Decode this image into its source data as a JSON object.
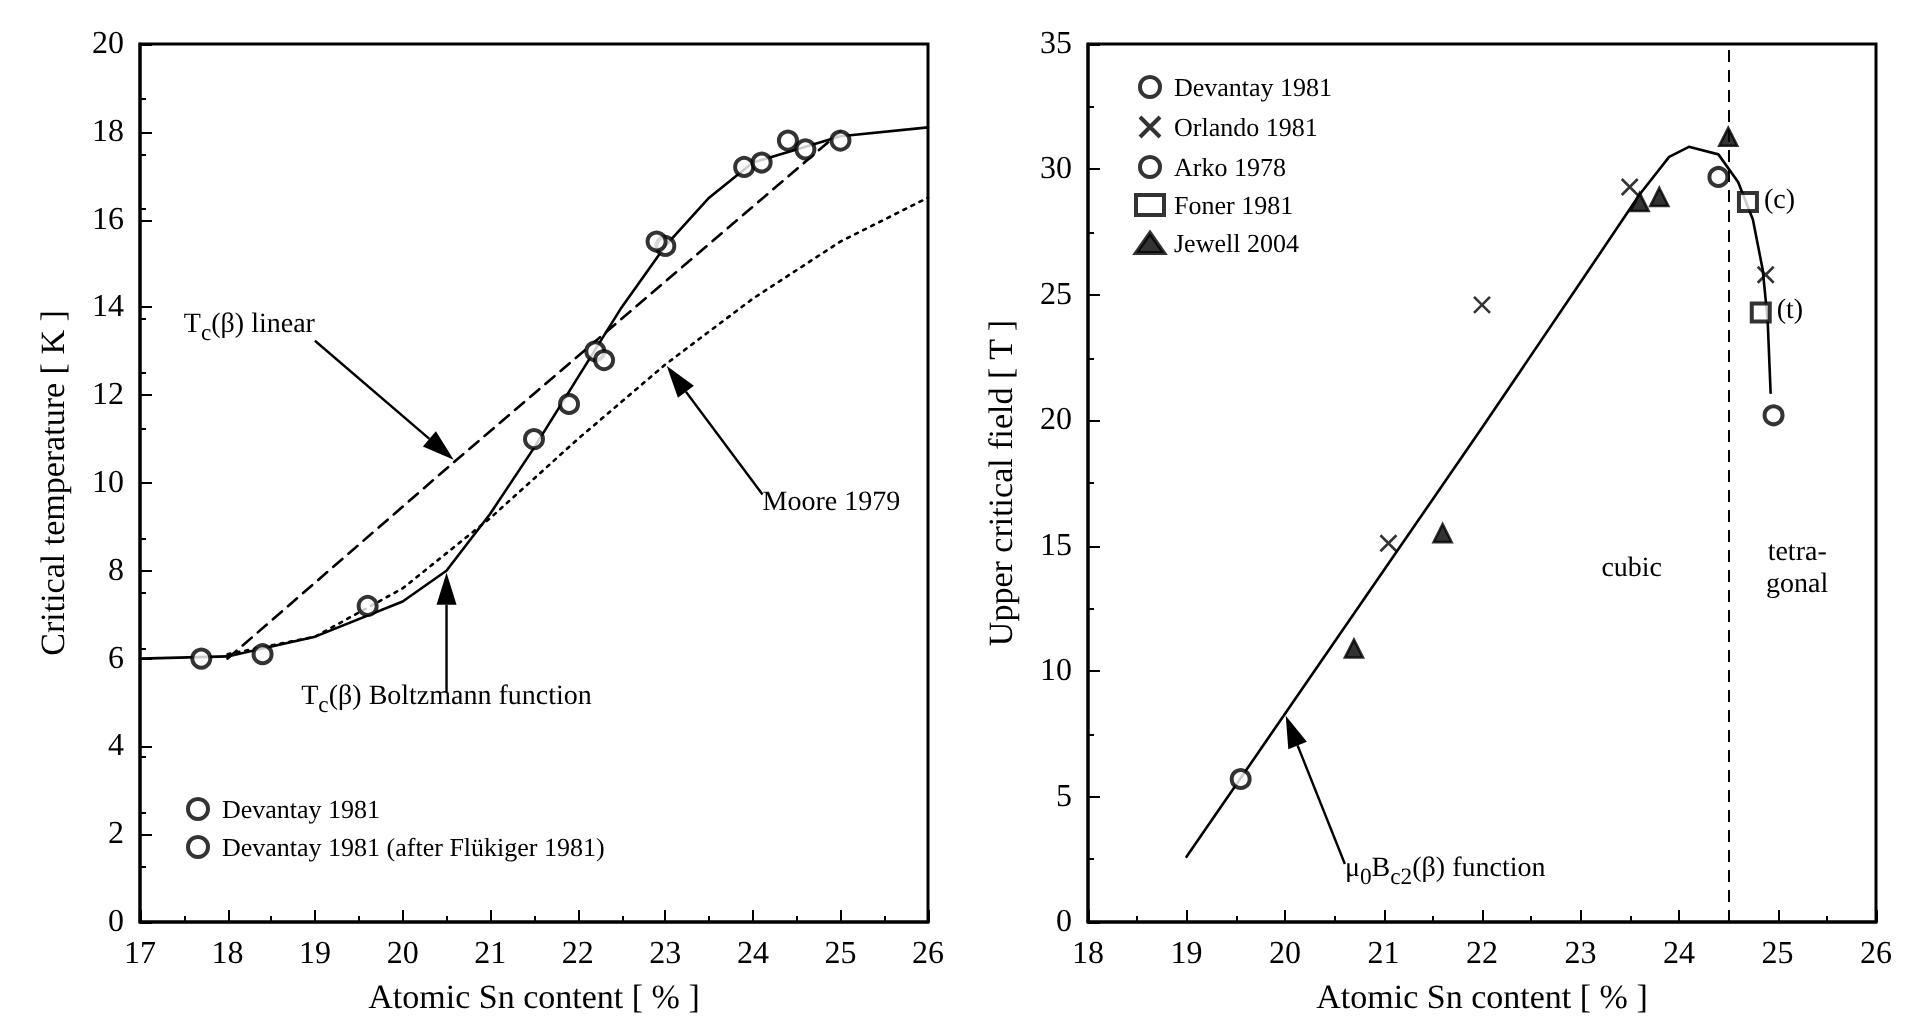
{
  "chart_data": [
    {
      "type": "scatter",
      "xlabel": "Atomic Sn content [ % ]",
      "ylabel": "Critical temperature [ K ]",
      "xlim": [
        17,
        26
      ],
      "ylim": [
        0,
        20
      ],
      "xticks": [
        17,
        18,
        19,
        20,
        21,
        22,
        23,
        24,
        25,
        26
      ],
      "yticks": [
        0,
        2,
        4,
        6,
        8,
        10,
        12,
        14,
        16,
        18,
        20
      ],
      "grid": false,
      "legend": "bottom left",
      "series": [
        {
          "name": "Devantay 1981",
          "marker": "circle",
          "color": "#000000",
          "x": [
            17.7,
            18.4,
            21.9,
            22.2,
            23.0,
            23.9,
            24.1,
            25.0
          ],
          "values": [
            6.0,
            6.1,
            11.8,
            13.0,
            15.4,
            17.2,
            17.3,
            17.8
          ]
        },
        {
          "name": "Devantay 1981 (after Flükiger 1981)",
          "marker": "circle",
          "color": "#000000",
          "x": [
            19.6,
            21.5,
            22.3,
            22.9,
            24.4,
            24.6
          ],
          "values": [
            7.2,
            11.0,
            12.8,
            15.5,
            17.8,
            17.6
          ]
        },
        {
          "type": "line",
          "marker": "none",
          "line_style": "solid",
          "color": "#000000",
          "x": [
            17,
            18,
            19,
            20,
            20.5,
            21,
            21.5,
            22,
            22.5,
            23,
            23.5,
            24,
            25,
            26
          ],
          "values": [
            6.0,
            6.05,
            6.5,
            7.3,
            8.0,
            9.3,
            10.8,
            12.4,
            14.0,
            15.4,
            16.5,
            17.3,
            17.9,
            18.1
          ]
        },
        {
          "type": "line",
          "marker": "none",
          "line_style": "dashed",
          "color": "#000000",
          "x": [
            18,
            20.6,
            25
          ],
          "values": [
            6.0,
            10.5,
            18.0
          ]
        },
        {
          "type": "line",
          "marker": "none",
          "line_style": "dotted",
          "color": "#000000",
          "x": [
            18,
            19,
            20,
            21,
            22,
            23,
            24,
            25,
            26
          ],
          "values": [
            6.1,
            6.5,
            7.6,
            9.2,
            11.0,
            12.7,
            14.2,
            15.5,
            16.5
          ]
        }
      ],
      "annotations": [
        "T$_{c}$(β) linear",
        "Moore 1979",
        "T$_{c}$(β) Boltzmann function"
      ]
    },
    {
      "type": "scatter",
      "xlabel": "Atomic Sn content [ % ]",
      "ylabel": "Upper critical field [ T ]",
      "xlim": [
        18,
        26
      ],
      "ylim": [
        0,
        35
      ],
      "xticks": [
        18,
        19,
        20,
        21,
        22,
        23,
        24,
        25,
        26
      ],
      "yticks": [
        0,
        5,
        10,
        15,
        20,
        25,
        30,
        35
      ],
      "grid": false,
      "legend": "top left",
      "series": [
        {
          "name": "Devantay 1981",
          "marker": "circle",
          "color": "#000000",
          "x": [
            19.55,
            24.4
          ],
          "values": [
            5.7,
            29.7
          ]
        },
        {
          "name": "Orlando 1981",
          "marker": "cross",
          "color": "#000000",
          "x": [
            21.05,
            22.0,
            23.5,
            24.88
          ],
          "values": [
            15.1,
            24.6,
            29.3,
            25.8
          ]
        },
        {
          "name": "Arko 1978",
          "marker": "circle",
          "color": "#000000",
          "x": [
            24.96
          ],
          "values": [
            20.2
          ]
        },
        {
          "name": "Foner 1981",
          "marker": "square",
          "color": "#000000",
          "x": [
            24.7,
            24.83
          ],
          "values": [
            28.7,
            24.3
          ]
        },
        {
          "name": "Jewell 2004",
          "marker": "triangle",
          "color": "#000000",
          "x": [
            20.7,
            21.6,
            23.6,
            23.8,
            24.5
          ],
          "values": [
            10.9,
            15.5,
            28.7,
            28.9,
            31.3
          ]
        },
        {
          "type": "line",
          "marker": "none",
          "line_style": "solid",
          "color": "#000000",
          "x": [
            19.0,
            20.0,
            21.0,
            22.0,
            23.0,
            23.6,
            23.9,
            24.1,
            24.4,
            24.6,
            24.75,
            24.85,
            24.9,
            24.93
          ],
          "values": [
            2.6,
            8.3,
            14.0,
            19.7,
            25.5,
            29.0,
            30.5,
            30.9,
            30.6,
            29.5,
            28.0,
            26.0,
            24.0,
            21.1
          ]
        }
      ],
      "ref_lines": [
        {
          "axis": "x",
          "value": 24.5,
          "line_style": "dashed",
          "color": "#000000"
        }
      ],
      "annotations": [
        "μ$_{0}$B$_{c2}$(β) function",
        {
          "text": "(c)",
          "x": 24.7,
          "y": 28.7
        },
        {
          "text": "(t)",
          "x": 24.83,
          "y": 24.3
        },
        "cubic",
        "tetra-\ngonal"
      ]
    }
  ]
}
